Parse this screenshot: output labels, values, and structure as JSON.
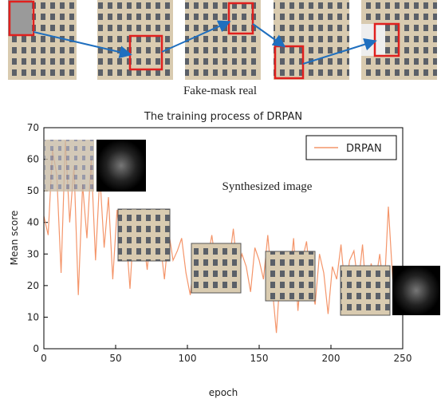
{
  "figure": {
    "caption": "Fake-mask real"
  },
  "chart_data": {
    "type": "line",
    "title": "The training process of DRPAN",
    "x_label": "epoch",
    "y_label": "Mean score",
    "annotation": "Synthesized image",
    "legend": "upper right",
    "xlim": [
      0,
      250
    ],
    "ylim": [
      0,
      70
    ],
    "xticks": [
      0,
      50,
      100,
      150,
      200,
      250
    ],
    "yticks": [
      0,
      10,
      20,
      30,
      40,
      50,
      60,
      70
    ],
    "x": [
      0,
      3,
      6,
      9,
      12,
      15,
      18,
      21,
      24,
      27,
      30,
      33,
      36,
      39,
      42,
      45,
      48,
      51,
      54,
      57,
      60,
      63,
      66,
      69,
      72,
      75,
      78,
      81,
      84,
      87,
      90,
      93,
      96,
      99,
      102,
      105,
      108,
      111,
      114,
      117,
      120,
      123,
      126,
      129,
      132,
      135,
      138,
      141,
      144,
      147,
      150,
      153,
      156,
      159,
      162,
      165,
      168,
      171,
      174,
      177,
      180,
      183,
      186,
      189,
      192,
      195,
      198,
      201,
      204,
      207,
      210,
      213,
      216,
      219,
      222,
      225,
      228,
      231,
      234,
      237,
      240,
      243,
      246,
      249
    ],
    "series": [
      {
        "name": "DRPAN",
        "color": "#f4956a",
        "values": [
          42,
          36,
          63,
          55,
          24,
          66,
          40,
          58,
          17,
          52,
          35,
          60,
          28,
          55,
          32,
          48,
          22,
          44,
          30,
          38,
          19,
          42,
          33,
          36,
          25,
          40,
          30,
          34,
          22,
          37,
          28,
          31,
          35,
          24,
          17,
          30,
          33,
          22,
          28,
          36,
          26,
          31,
          20,
          27,
          38,
          24,
          30,
          26,
          18,
          32,
          28,
          22,
          36,
          20,
          5,
          26,
          30,
          22,
          35,
          12,
          28,
          34,
          20,
          14,
          30,
          24,
          11,
          26,
          22,
          33,
          18,
          28,
          31,
          20,
          33,
          15,
          27,
          21,
          30,
          17,
          45,
          22,
          16,
          18
        ]
      }
    ]
  }
}
